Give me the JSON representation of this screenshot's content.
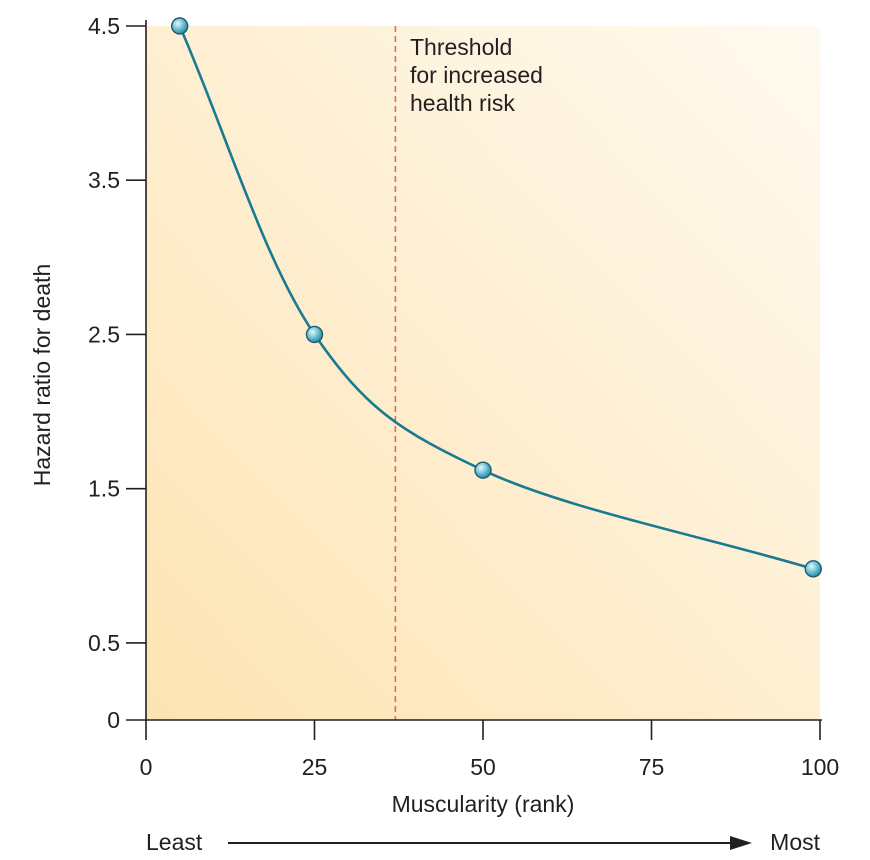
{
  "chart_data": {
    "type": "line",
    "title": "",
    "xlabel": "Muscularity (rank)",
    "ylabel": "Hazard ratio for death",
    "xlim": [
      0,
      100
    ],
    "ylim": [
      0,
      4.5
    ],
    "x_ticks": [
      "0",
      "25",
      "50",
      "75",
      "100"
    ],
    "y_ticks": [
      "0",
      "0.5",
      "1.5",
      "2.5",
      "3.5",
      "4.5"
    ],
    "x_tick_values": [
      0,
      25,
      50,
      75,
      100
    ],
    "y_tick_values": [
      0,
      0.5,
      1.5,
      2.5,
      3.5,
      4.5
    ],
    "series": [
      {
        "name": "Hazard ratio",
        "x": [
          5,
          25,
          50,
          99
        ],
        "y": [
          4.5,
          2.5,
          1.62,
          0.98
        ]
      }
    ],
    "threshold": {
      "x": 37,
      "label_lines": [
        "Threshold",
        "for increased",
        "health risk"
      ]
    },
    "direction": {
      "left": "Least",
      "right": "Most"
    },
    "colors": {
      "line": "#1a7a91",
      "marker": "#5ab8cf",
      "threshold": "#d8705e",
      "background_warm": "#fde4b3",
      "background_light": "#fffaf0",
      "axis": "#231f20"
    }
  }
}
